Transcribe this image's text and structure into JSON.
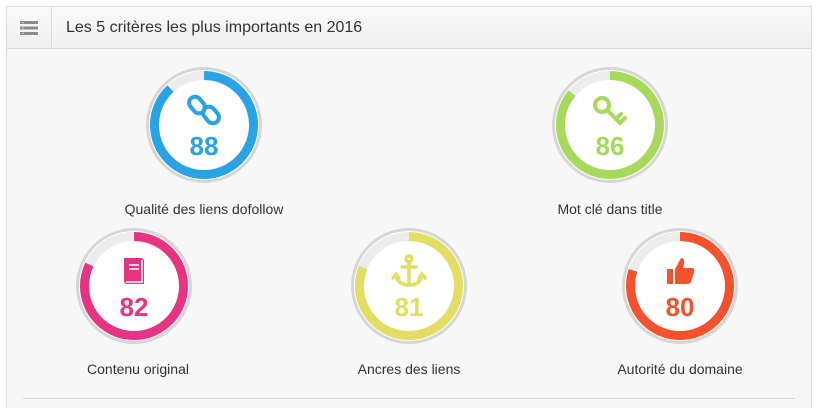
{
  "header": {
    "title": "Les 5 critères les plus importants en 2016",
    "icon": "list-icon"
  },
  "gauges": [
    {
      "id": "qualite",
      "icon": "link-icon",
      "value": "88",
      "percent": 88,
      "label": "Qualité des liens dofollow",
      "color": "#2aa2e6"
    },
    {
      "id": "motcle",
      "icon": "key-icon",
      "value": "86",
      "percent": 86,
      "label": "Mot clé dans title",
      "color": "#a7d95c"
    },
    {
      "id": "contenu",
      "icon": "book-icon",
      "value": "82",
      "percent": 82,
      "label": "Contenu original",
      "color": "#e63483"
    },
    {
      "id": "ancres",
      "icon": "anchor-icon",
      "value": "81",
      "percent": 81,
      "label": "Ancres des liens",
      "color": "#e2de63"
    },
    {
      "id": "autorite",
      "icon": "thumbs-up-icon",
      "value": "80",
      "percent": 80,
      "label": "Autorité du domaine",
      "color": "#f4522d"
    }
  ]
}
